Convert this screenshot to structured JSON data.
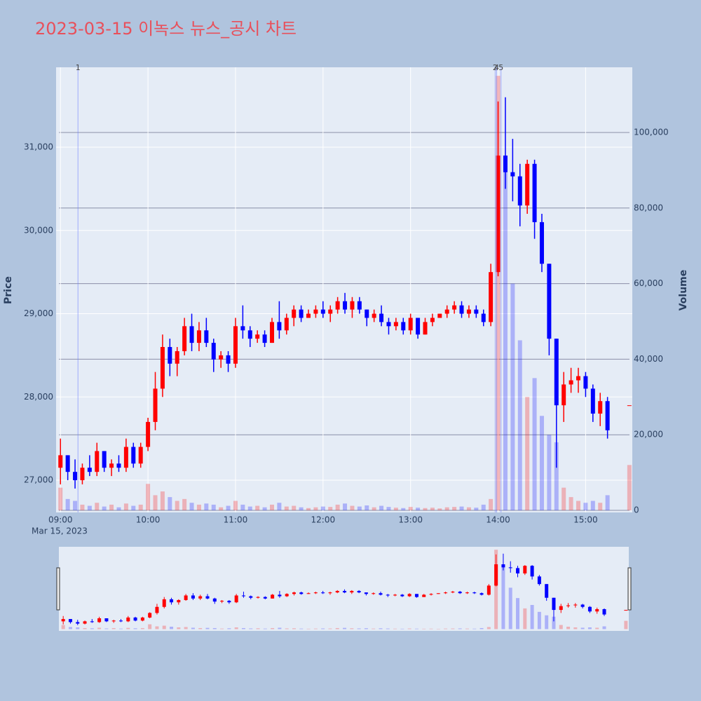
{
  "chart_data": {
    "type": "candlestick",
    "title": "2023-03-15 이녹스 뉴스_공시 차트",
    "y_title": "Price",
    "y2_title": "Volume",
    "x_date": "Mar 15, 2023",
    "xlim": [
      "08:57",
      "15:32"
    ],
    "xticks": [
      "09:00",
      "10:00",
      "11:00",
      "12:00",
      "13:00",
      "14:00",
      "15:00"
    ],
    "ylim": [
      26613,
      31960
    ],
    "yticks": [
      {
        "value": 27000,
        "label": "27,000"
      },
      {
        "value": 28000,
        "label": "28,000"
      },
      {
        "value": 29000,
        "label": "29,000"
      },
      {
        "value": 30000,
        "label": "30,000"
      },
      {
        "value": 31000,
        "label": "31,000"
      }
    ],
    "y2lim": [
      -557,
      117254
    ],
    "y2ticks": [
      0,
      {
        "value": 20000,
        "label": "20,000"
      },
      {
        "value": 40000,
        "label": "40,000"
      },
      {
        "value": 60000,
        "label": "60,000"
      },
      {
        "value": 80000,
        "label": "80,000"
      },
      {
        "value": 100000,
        "label": "100,000"
      }
    ],
    "up_color": "#ff0000",
    "down_color": "#0000ff",
    "events": [
      {
        "label": "1",
        "x": "09:12"
      },
      {
        "label": "2",
        "x": "13:58"
      },
      {
        "label": "4",
        "x": "13:59"
      },
      {
        "label": "5",
        "x": "14:02"
      }
    ],
    "x": [
      "09:00",
      "09:05",
      "09:10",
      "09:15",
      "09:20",
      "09:25",
      "09:30",
      "09:35",
      "09:40",
      "09:45",
      "09:50",
      "09:55",
      "10:00",
      "10:05",
      "10:10",
      "10:15",
      "10:20",
      "10:25",
      "10:30",
      "10:35",
      "10:40",
      "10:45",
      "10:50",
      "10:55",
      "11:00",
      "11:05",
      "11:10",
      "11:15",
      "11:20",
      "11:25",
      "11:30",
      "11:35",
      "11:40",
      "11:45",
      "11:50",
      "11:55",
      "12:00",
      "12:05",
      "12:10",
      "12:15",
      "12:20",
      "12:25",
      "12:30",
      "12:35",
      "12:40",
      "12:45",
      "12:50",
      "12:55",
      "13:00",
      "13:05",
      "13:10",
      "13:15",
      "13:20",
      "13:25",
      "13:30",
      "13:35",
      "13:40",
      "13:45",
      "13:50",
      "13:55",
      "14:00",
      "14:05",
      "14:10",
      "14:15",
      "14:20",
      "14:25",
      "14:30",
      "14:35",
      "14:40",
      "14:45",
      "14:50",
      "14:55",
      "15:00",
      "15:05",
      "15:10",
      "15:15",
      "15:30"
    ],
    "open": [
      27150,
      27300,
      27100,
      27000,
      27150,
      27100,
      27350,
      27150,
      27200,
      27150,
      27400,
      27200,
      27400,
      27700,
      28100,
      28600,
      28400,
      28550,
      28850,
      28650,
      28800,
      28650,
      28450,
      28500,
      28400,
      28850,
      28800,
      28700,
      28750,
      28650,
      28900,
      28800,
      28950,
      29050,
      28950,
      29000,
      29050,
      29000,
      29050,
      29150,
      29050,
      29150,
      29050,
      28950,
      29000,
      28900,
      28850,
      28900,
      28800,
      28950,
      28750,
      28900,
      28950,
      29000,
      29050,
      29100,
      29000,
      29050,
      29000,
      28900,
      29500,
      30900,
      30700,
      30650,
      30300,
      30800,
      30100,
      29600,
      28700,
      27900,
      28150,
      28200,
      28250,
      28100,
      27800,
      27950,
      27900
    ],
    "high": [
      27500,
      27300,
      27250,
      27200,
      27300,
      27450,
      27350,
      27250,
      27300,
      27500,
      27450,
      27450,
      27750,
      28300,
      28750,
      28700,
      28600,
      28950,
      29000,
      28900,
      28950,
      28700,
      28550,
      28550,
      28950,
      29100,
      28850,
      28800,
      28800,
      28950,
      29150,
      29000,
      29100,
      29100,
      29050,
      29100,
      29150,
      29100,
      29200,
      29250,
      29200,
      29200,
      29050,
      29050,
      29100,
      28950,
      28950,
      28950,
      29000,
      28950,
      28950,
      29000,
      29000,
      29100,
      29150,
      29150,
      29100,
      29100,
      29050,
      29600,
      31550,
      31600,
      31100,
      30800,
      30850,
      30850,
      30200,
      29600,
      28700,
      28300,
      28350,
      28350,
      28300,
      28150,
      28050,
      28000,
      27900
    ],
    "low": [
      26950,
      27000,
      26900,
      26950,
      27050,
      27050,
      27100,
      27050,
      27100,
      27100,
      27150,
      27150,
      27350,
      27600,
      28000,
      28250,
      28250,
      28500,
      28550,
      28550,
      28600,
      28300,
      28350,
      28300,
      28350,
      28700,
      28600,
      28650,
      28600,
      28650,
      28700,
      28750,
      28850,
      28900,
      28950,
      28950,
      28950,
      28900,
      29000,
      29000,
      28950,
      29000,
      28850,
      28900,
      28850,
      28750,
      28800,
      28750,
      28750,
      28700,
      28750,
      28850,
      28950,
      28950,
      29000,
      28950,
      28950,
      28950,
      28850,
      28850,
      29450,
      30500,
      30350,
      30050,
      30200,
      29900,
      29500,
      28500,
      27150,
      27700,
      28050,
      28050,
      28000,
      27700,
      27650,
      27500,
      27900
    ],
    "close": [
      27300,
      27100,
      27000,
      27150,
      27100,
      27350,
      27150,
      27200,
      27150,
      27400,
      27200,
      27400,
      27700,
      28100,
      28600,
      28400,
      28550,
      28850,
      28650,
      28800,
      28650,
      28450,
      28500,
      28400,
      28850,
      28800,
      28700,
      28750,
      28650,
      28900,
      28800,
      28950,
      29050,
      28950,
      29000,
      29050,
      29000,
      29050,
      29150,
      29050,
      29150,
      29050,
      28950,
      29000,
      28900,
      28850,
      28900,
      28800,
      28950,
      28750,
      28900,
      28950,
      29000,
      29050,
      29100,
      29000,
      29050,
      29000,
      28900,
      29500,
      30900,
      30700,
      30650,
      30300,
      30800,
      30100,
      29600,
      28700,
      27900,
      28150,
      28200,
      28250,
      28100,
      27800,
      27950,
      27600,
      27900
    ],
    "volume": [
      6000,
      3000,
      2500,
      1500,
      1200,
      2000,
      1000,
      1500,
      800,
      1800,
      1200,
      1500,
      7000,
      4000,
      5000,
      3500,
      2500,
      3000,
      2000,
      1500,
      1800,
      1500,
      800,
      1200,
      2500,
      1500,
      1000,
      1200,
      800,
      1500,
      2000,
      1000,
      1200,
      800,
      600,
      800,
      1000,
      900,
      1500,
      1800,
      1200,
      1000,
      1300,
      800,
      1200,
      900,
      700,
      600,
      900,
      700,
      600,
      700,
      500,
      800,
      900,
      1000,
      800,
      700,
      1500,
      3000,
      115000,
      90000,
      60000,
      45000,
      30000,
      35000,
      25000,
      20000,
      18000,
      6000,
      3500,
      2500,
      2000,
      2500,
      2000,
      4000,
      12000
    ]
  }
}
